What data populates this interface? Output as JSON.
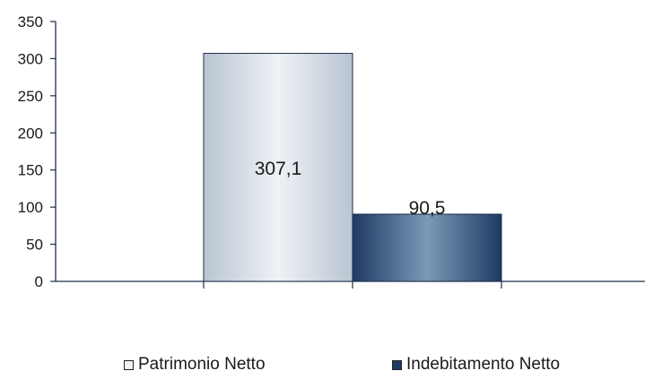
{
  "chart_data": {
    "type": "bar",
    "categories": [
      ""
    ],
    "series": [
      {
        "name": "Patrimonio Netto",
        "values": [
          307.1
        ],
        "label": "307,1",
        "color": "#b9c5d2",
        "color_light": "#eef2f6"
      },
      {
        "name": "Indebitamento Netto",
        "values": [
          90.5
        ],
        "label": "90,5",
        "color": "#1f3a63",
        "color_light": "#7a9ab8"
      }
    ],
    "yticks": [
      "0",
      "50",
      "100",
      "150",
      "200",
      "250",
      "300",
      "350"
    ],
    "ylim": [
      0,
      350
    ],
    "grid": false,
    "legend_position": "bottom"
  }
}
